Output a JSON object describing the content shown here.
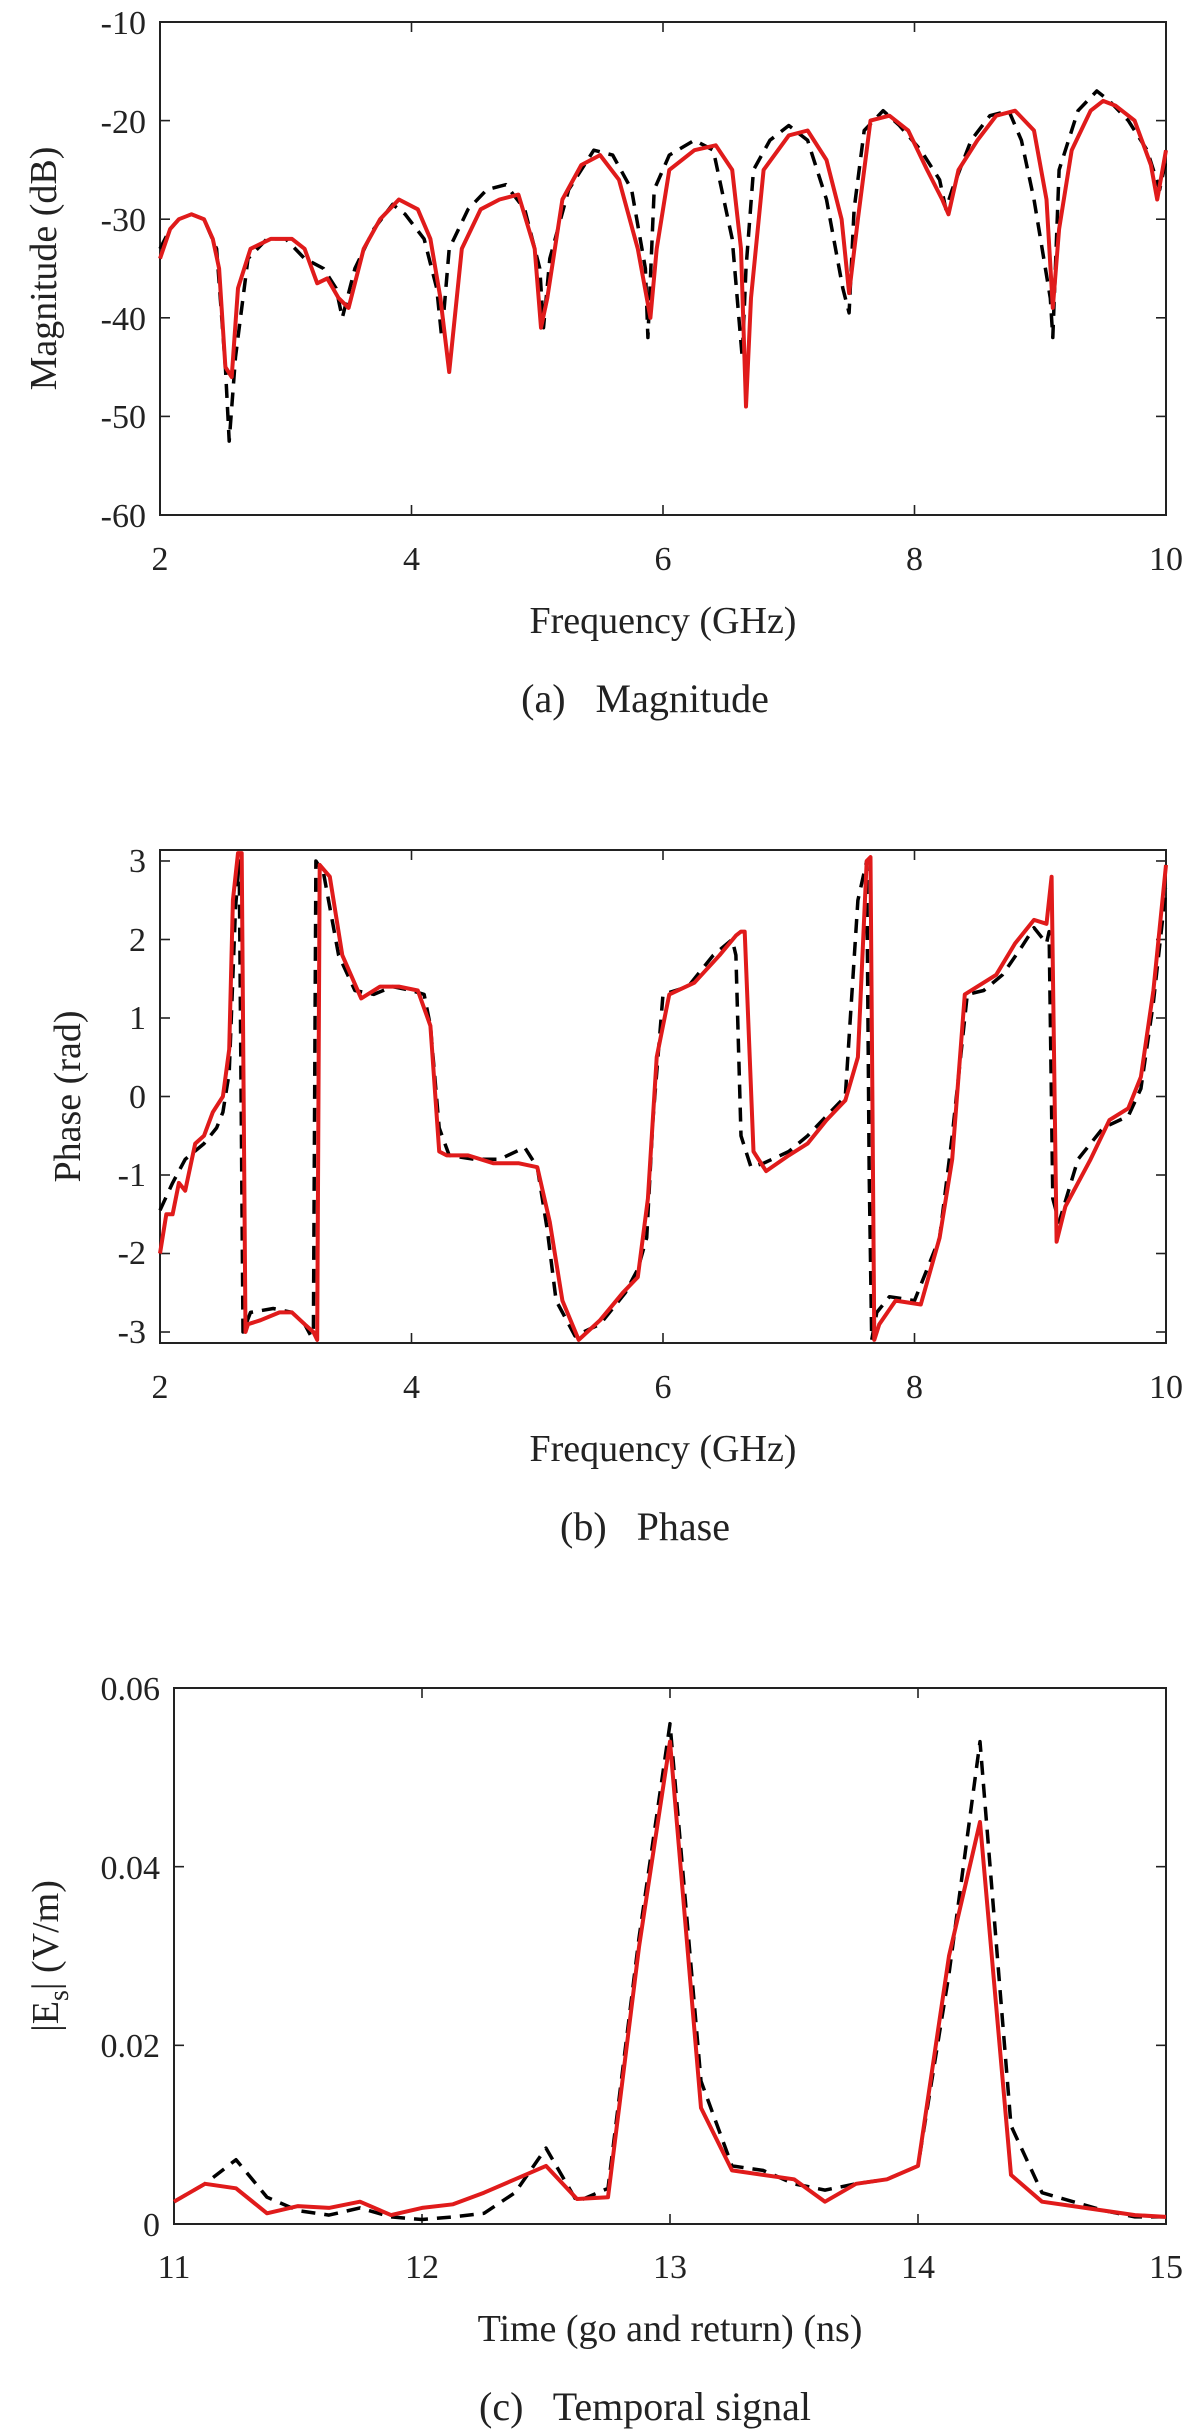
{
  "chart_data": [
    {
      "type": "line",
      "caption": "(a)   Magnitude",
      "xlabel": "Frequency (GHz)",
      "ylabel": "Magnitude (dB)",
      "xlim": [
        2,
        10
      ],
      "ylim": [
        -60,
        -10
      ],
      "xticks": [
        2,
        4,
        6,
        8,
        10
      ],
      "yticks": [
        -60,
        -50,
        -40,
        -30,
        -20,
        -10
      ],
      "xtick_labels": [
        "2",
        "4",
        "6",
        "8",
        "10"
      ],
      "ytick_labels": [
        "-60",
        "-50",
        "-40",
        "-30",
        "-20",
        "-10"
      ],
      "grid": false,
      "series": [
        {
          "name": "dashed-black",
          "color": "#000000",
          "style": "dashed",
          "x": [
            2.0,
            2.08,
            2.15,
            2.25,
            2.35,
            2.45,
            2.52,
            2.55,
            2.6,
            2.7,
            2.85,
            3.0,
            3.15,
            3.3,
            3.4,
            3.45,
            3.55,
            3.7,
            3.85,
            3.95,
            4.1,
            4.2,
            4.24,
            4.3,
            4.45,
            4.6,
            4.75,
            4.9,
            5.02,
            5.05,
            5.1,
            5.25,
            5.45,
            5.6,
            5.75,
            5.86,
            5.88,
            5.93,
            6.05,
            6.25,
            6.4,
            6.55,
            6.63,
            6.66,
            6.72,
            6.85,
            7.0,
            7.15,
            7.3,
            7.43,
            7.48,
            7.52,
            7.6,
            7.75,
            7.88,
            8.05,
            8.2,
            8.25,
            8.3,
            8.45,
            8.6,
            8.75,
            8.85,
            8.95,
            9.08,
            9.1,
            9.15,
            9.3,
            9.45,
            9.55,
            9.7,
            9.85,
            9.95,
            10.0
          ],
          "y": [
            -33,
            -31,
            -30,
            -29.5,
            -30,
            -33,
            -45,
            -52.5,
            -44,
            -34,
            -32,
            -32,
            -34,
            -35,
            -37,
            -40,
            -35,
            -31,
            -28.5,
            -29.5,
            -32,
            -37,
            -42,
            -33,
            -29,
            -27,
            -26.5,
            -29,
            -35,
            -41,
            -34,
            -27,
            -23,
            -23.5,
            -27,
            -35,
            -42,
            -27,
            -23.5,
            -22,
            -23,
            -32,
            -44,
            -35,
            -25,
            -22,
            -20.5,
            -22,
            -28,
            -37,
            -39.5,
            -29,
            -21,
            -19,
            -20.5,
            -23,
            -26,
            -29,
            -27,
            -22,
            -19.5,
            -19,
            -22,
            -28,
            -38,
            -42,
            -25,
            -19,
            -17,
            -18,
            -20,
            -23,
            -27,
            -24
          ]
        },
        {
          "name": "solid-red",
          "color": "#e01b1b",
          "style": "solid",
          "x": [
            2.0,
            2.08,
            2.15,
            2.25,
            2.35,
            2.42,
            2.47,
            2.52,
            2.57,
            2.62,
            2.72,
            2.88,
            3.05,
            3.15,
            3.25,
            3.33,
            3.42,
            3.5,
            3.62,
            3.75,
            3.9,
            4.05,
            4.15,
            4.23,
            4.3,
            4.4,
            4.55,
            4.7,
            4.85,
            4.98,
            5.03,
            5.08,
            5.2,
            5.35,
            5.5,
            5.65,
            5.8,
            5.9,
            5.95,
            6.05,
            6.25,
            6.42,
            6.55,
            6.62,
            6.66,
            6.7,
            6.8,
            7.0,
            7.15,
            7.3,
            7.42,
            7.48,
            7.55,
            7.65,
            7.8,
            7.95,
            8.1,
            8.22,
            8.27,
            8.35,
            8.5,
            8.65,
            8.8,
            8.95,
            9.05,
            9.1,
            9.15,
            9.25,
            9.4,
            9.5,
            9.6,
            9.75,
            9.88,
            9.93,
            10.0
          ],
          "y": [
            -34,
            -31,
            -30,
            -29.5,
            -30,
            -32,
            -35,
            -45,
            -46,
            -37,
            -33,
            -32,
            -32,
            -33,
            -36.5,
            -36,
            -38,
            -39,
            -33,
            -30,
            -28,
            -29,
            -32,
            -38,
            -45.5,
            -33,
            -29,
            -28,
            -27.5,
            -33,
            -41,
            -38,
            -28,
            -24.5,
            -23.5,
            -26,
            -33,
            -40,
            -33,
            -25,
            -23,
            -22.5,
            -25,
            -33,
            -49,
            -38,
            -25,
            -21.5,
            -21,
            -24,
            -30,
            -37.5,
            -30,
            -20,
            -19.5,
            -21,
            -25,
            -28,
            -29.5,
            -25,
            -22,
            -19.5,
            -19,
            -21,
            -28,
            -39,
            -31,
            -23,
            -19,
            -18,
            -18.5,
            -20,
            -24.5,
            -28,
            -23
          ]
        }
      ]
    },
    {
      "type": "line",
      "caption": "(b)   Phase",
      "xlabel": "Frequency (GHz)",
      "ylabel": "Phase (rad)",
      "xlim": [
        2,
        10
      ],
      "ylim": [
        -3.14,
        3.14
      ],
      "xticks": [
        2,
        4,
        6,
        8,
        10
      ],
      "yticks": [
        -3,
        -2,
        -1,
        0,
        1,
        2,
        3
      ],
      "xtick_labels": [
        "2",
        "4",
        "6",
        "8",
        "10"
      ],
      "ytick_labels": [
        "-3",
        "-2",
        "-1",
        "0",
        "1",
        "2",
        "3"
      ],
      "grid": false,
      "series": [
        {
          "name": "dashed-black",
          "color": "#000000",
          "style": "dashed",
          "x": [
            2.0,
            2.1,
            2.2,
            2.35,
            2.45,
            2.5,
            2.55,
            2.6,
            2.63,
            2.66,
            2.72,
            2.9,
            3.05,
            3.15,
            3.2,
            3.22,
            3.24,
            3.3,
            3.42,
            3.55,
            3.7,
            3.85,
            4.0,
            4.1,
            4.15,
            4.22,
            4.3,
            4.5,
            4.7,
            4.9,
            5.0,
            5.08,
            5.15,
            5.3,
            5.5,
            5.7,
            5.8,
            5.87,
            5.92,
            6.0,
            6.2,
            6.4,
            6.55,
            6.58,
            6.62,
            6.7,
            6.8,
            7.0,
            7.15,
            7.3,
            7.45,
            7.55,
            7.62,
            7.64,
            7.66,
            7.7,
            7.8,
            8.0,
            8.1,
            8.2,
            8.3,
            8.42,
            8.55,
            8.7,
            8.85,
            8.95,
            9.05,
            9.07,
            9.1,
            9.15,
            9.3,
            9.5,
            9.7,
            9.8,
            9.9,
            10.0
          ],
          "y": [
            -1.45,
            -1.1,
            -0.8,
            -0.6,
            -0.4,
            -0.2,
            0.3,
            2.4,
            3.0,
            -3.0,
            -2.75,
            -2.7,
            -2.75,
            -2.9,
            -3.05,
            -3.0,
            3.0,
            2.85,
            1.8,
            1.35,
            1.3,
            1.4,
            1.35,
            1.3,
            0.9,
            -0.4,
            -0.75,
            -0.8,
            -0.8,
            -0.65,
            -0.9,
            -1.7,
            -2.6,
            -3.05,
            -2.9,
            -2.5,
            -2.2,
            -1.8,
            -0.3,
            1.3,
            1.4,
            1.8,
            2.0,
            1.8,
            -0.5,
            -0.9,
            -0.85,
            -0.7,
            -0.5,
            -0.25,
            0.0,
            2.5,
            3.0,
            -1.0,
            -3.1,
            -2.75,
            -2.55,
            -2.6,
            -2.2,
            -1.8,
            -0.5,
            1.3,
            1.35,
            1.55,
            1.9,
            2.15,
            1.95,
            2.1,
            -1.3,
            -1.6,
            -0.8,
            -0.4,
            -0.25,
            0.1,
            1.2,
            2.65
          ]
        },
        {
          "name": "solid-red",
          "color": "#e01b1b",
          "style": "solid",
          "x": [
            2.0,
            2.05,
            2.1,
            2.15,
            2.2,
            2.28,
            2.35,
            2.42,
            2.5,
            2.55,
            2.58,
            2.62,
            2.65,
            2.68,
            2.7,
            2.8,
            2.95,
            3.05,
            3.15,
            3.22,
            3.25,
            3.27,
            3.35,
            3.45,
            3.6,
            3.75,
            3.9,
            4.05,
            4.15,
            4.22,
            4.28,
            4.45,
            4.65,
            4.85,
            5.0,
            5.1,
            5.2,
            5.33,
            5.5,
            5.68,
            5.8,
            5.88,
            5.95,
            6.05,
            6.25,
            6.45,
            6.58,
            6.62,
            6.65,
            6.72,
            6.82,
            7.0,
            7.15,
            7.3,
            7.45,
            7.55,
            7.62,
            7.65,
            7.68,
            7.72,
            7.85,
            8.05,
            8.2,
            8.3,
            8.4,
            8.5,
            8.65,
            8.8,
            8.95,
            9.05,
            9.09,
            9.13,
            9.2,
            9.4,
            9.55,
            9.7,
            9.8,
            9.9,
            10.0
          ],
          "y": [
            -2.0,
            -1.5,
            -1.5,
            -1.1,
            -1.2,
            -0.6,
            -0.5,
            -0.2,
            0.0,
            0.6,
            2.5,
            3.1,
            3.1,
            -3.0,
            -2.9,
            -2.85,
            -2.75,
            -2.75,
            -2.9,
            -3.0,
            -3.1,
            2.95,
            2.8,
            1.8,
            1.25,
            1.4,
            1.4,
            1.35,
            0.9,
            -0.7,
            -0.75,
            -0.75,
            -0.85,
            -0.85,
            -0.9,
            -1.6,
            -2.6,
            -3.1,
            -2.85,
            -2.5,
            -2.3,
            -1.3,
            0.5,
            1.3,
            1.45,
            1.8,
            2.05,
            2.1,
            2.1,
            -0.7,
            -0.95,
            -0.75,
            -0.6,
            -0.3,
            -0.05,
            0.5,
            3.0,
            3.05,
            -3.1,
            -2.9,
            -2.6,
            -2.65,
            -1.8,
            -0.8,
            1.3,
            1.4,
            1.55,
            1.95,
            2.25,
            2.2,
            2.8,
            -1.85,
            -1.4,
            -0.8,
            -0.3,
            -0.15,
            0.25,
            1.35,
            2.95
          ]
        }
      ]
    },
    {
      "type": "line",
      "caption": "(c)   Temporal signal",
      "xlabel": "Time (go and return) (ns)",
      "ylabel": "|E",
      "ylabel_sub": "s",
      "ylabel_tail": "| (V/m)",
      "xlim": [
        11,
        15
      ],
      "ylim": [
        0,
        0.06
      ],
      "xticks": [
        11,
        12,
        13,
        14,
        15
      ],
      "yticks": [
        0,
        0.02,
        0.04,
        0.06
      ],
      "xtick_labels": [
        "11",
        "12",
        "13",
        "14",
        "15"
      ],
      "ytick_labels": [
        "0",
        "0.02",
        "0.04",
        "0.06"
      ],
      "grid": false,
      "series": [
        {
          "name": "dashed-black",
          "color": "#000000",
          "style": "dashed",
          "x": [
            11.0,
            11.125,
            11.25,
            11.375,
            11.5,
            11.625,
            11.75,
            11.875,
            12.0,
            12.125,
            12.25,
            12.375,
            12.5,
            12.625,
            12.75,
            12.875,
            13.0,
            13.125,
            13.25,
            13.375,
            13.5,
            13.625,
            13.75,
            13.875,
            14.0,
            14.125,
            14.25,
            14.375,
            14.5,
            14.625,
            14.75,
            14.875,
            15.0
          ],
          "y": [
            0.0025,
            0.0045,
            0.0072,
            0.003,
            0.0015,
            0.001,
            0.0018,
            0.0008,
            0.0005,
            0.0008,
            0.0012,
            0.0035,
            0.0085,
            0.0025,
            0.004,
            0.032,
            0.056,
            0.016,
            0.0065,
            0.006,
            0.0045,
            0.0038,
            0.0045,
            0.005,
            0.0065,
            0.028,
            0.054,
            0.011,
            0.0035,
            0.0025,
            0.0015,
            0.0008,
            0.0008
          ]
        },
        {
          "name": "solid-red",
          "color": "#e01b1b",
          "style": "solid",
          "x": [
            11.0,
            11.125,
            11.25,
            11.375,
            11.5,
            11.625,
            11.75,
            11.875,
            12.0,
            12.125,
            12.25,
            12.375,
            12.5,
            12.625,
            12.75,
            12.875,
            13.0,
            13.125,
            13.25,
            13.375,
            13.5,
            13.625,
            13.75,
            13.875,
            14.0,
            14.125,
            14.25,
            14.375,
            14.5,
            14.625,
            14.75,
            14.875,
            15.0
          ],
          "y": [
            0.0025,
            0.0045,
            0.004,
            0.0012,
            0.002,
            0.0018,
            0.0025,
            0.001,
            0.0018,
            0.0022,
            0.0035,
            0.005,
            0.0065,
            0.0028,
            0.003,
            0.031,
            0.054,
            0.013,
            0.006,
            0.0055,
            0.005,
            0.0025,
            0.0045,
            0.005,
            0.0065,
            0.03,
            0.045,
            0.0055,
            0.0025,
            0.002,
            0.0015,
            0.001,
            0.0008
          ]
        }
      ]
    }
  ]
}
